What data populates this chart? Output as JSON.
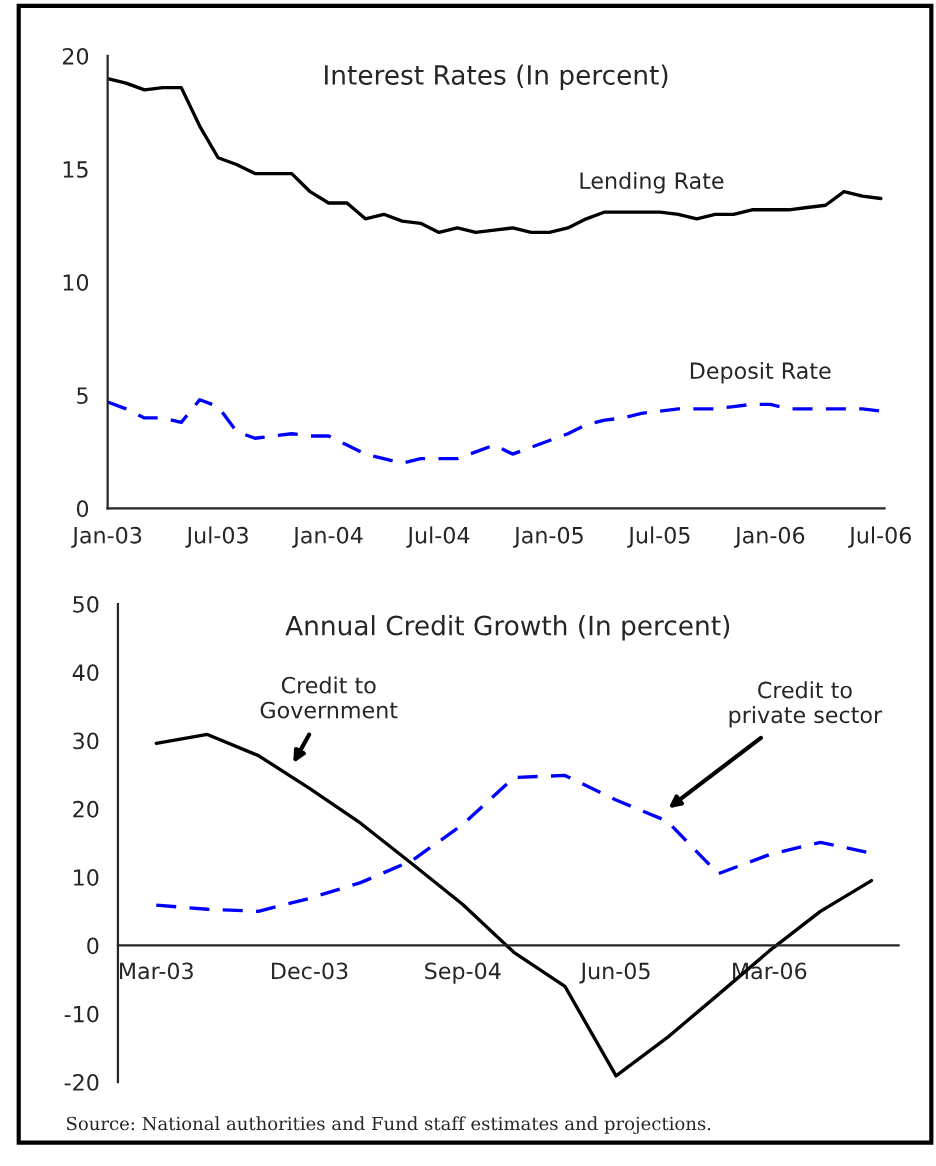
{
  "chart_data": [
    {
      "type": "line",
      "title": "Interest Rates (In percent)",
      "categories": [
        "Jan-03",
        null,
        null,
        null,
        null,
        null,
        "Jul-03",
        null,
        null,
        null,
        null,
        null,
        "Jan-04",
        null,
        null,
        null,
        null,
        null,
        "Jul-04",
        null,
        null,
        null,
        null,
        null,
        "Jan-05",
        null,
        null,
        null,
        null,
        null,
        "Jul-05",
        null,
        null,
        null,
        null,
        null,
        "Jan-06",
        null,
        null,
        null,
        null,
        null,
        "Jul-06"
      ],
      "ylim": [
        0,
        20
      ],
      "yticks": [
        0,
        5,
        10,
        15,
        20
      ],
      "grid": false,
      "legend": false,
      "series": [
        {
          "name": "Lending Rate",
          "color": "#000000",
          "line_style": "solid",
          "values": [
            19.0,
            18.8,
            18.5,
            18.6,
            18.6,
            16.9,
            15.5,
            15.2,
            14.8,
            14.8,
            14.8,
            14.0,
            13.5,
            13.5,
            12.8,
            13.0,
            12.7,
            12.6,
            12.2,
            12.4,
            12.2,
            12.3,
            12.4,
            12.2,
            12.2,
            12.4,
            12.8,
            13.1,
            13.1,
            13.1,
            13.1,
            13.0,
            12.8,
            13.0,
            13.0,
            13.2,
            13.2,
            13.2,
            13.3,
            13.4,
            14.0,
            13.8,
            13.7
          ]
        },
        {
          "name": "Deposit Rate",
          "color": "#0000ff",
          "line_style": "dashed",
          "values": [
            4.7,
            4.4,
            4.0,
            4.0,
            3.8,
            4.8,
            4.5,
            3.4,
            3.1,
            3.2,
            3.3,
            3.2,
            3.2,
            2.8,
            2.4,
            2.2,
            2.0,
            2.2,
            2.2,
            2.2,
            2.5,
            2.8,
            2.4,
            2.7,
            3.0,
            3.3,
            3.7,
            3.9,
            4.0,
            4.2,
            4.3,
            4.4,
            4.4,
            4.4,
            4.5,
            4.6,
            4.6,
            4.4,
            4.4,
            4.4,
            4.4,
            4.4,
            4.3
          ]
        }
      ]
    },
    {
      "type": "line",
      "title": "Annual Credit Growth (In percent)",
      "categories": [
        "Mar-03",
        null,
        null,
        "Dec-03",
        null,
        null,
        "Sep-04",
        null,
        null,
        "Jun-05",
        null,
        null,
        "Mar-06",
        null,
        null
      ],
      "ylim": [
        -20,
        50
      ],
      "yticks": [
        -20,
        -10,
        0,
        10,
        20,
        30,
        40,
        50
      ],
      "grid": false,
      "legend": false,
      "series": [
        {
          "name": "Credit to\nGovernment",
          "color": "#000000",
          "line_style": "solid",
          "values": [
            29.6,
            30.9,
            27.8,
            23.0,
            17.9,
            12.0,
            6.0,
            -1.0,
            -6.0,
            -19.1,
            -13.5,
            -7.2,
            -0.8,
            5.0,
            9.5
          ]
        },
        {
          "name": "Credit to\nprivate sector",
          "color": "#0000ff",
          "line_style": "dashed",
          "values": [
            5.9,
            5.3,
            5.0,
            6.9,
            9.2,
            12.4,
            17.7,
            24.6,
            24.9,
            21.3,
            18.2,
            10.5,
            13.3,
            15.1,
            13.5
          ]
        }
      ],
      "annotations": [
        "Source: National authorities and Fund staff estimates and projections."
      ]
    }
  ]
}
